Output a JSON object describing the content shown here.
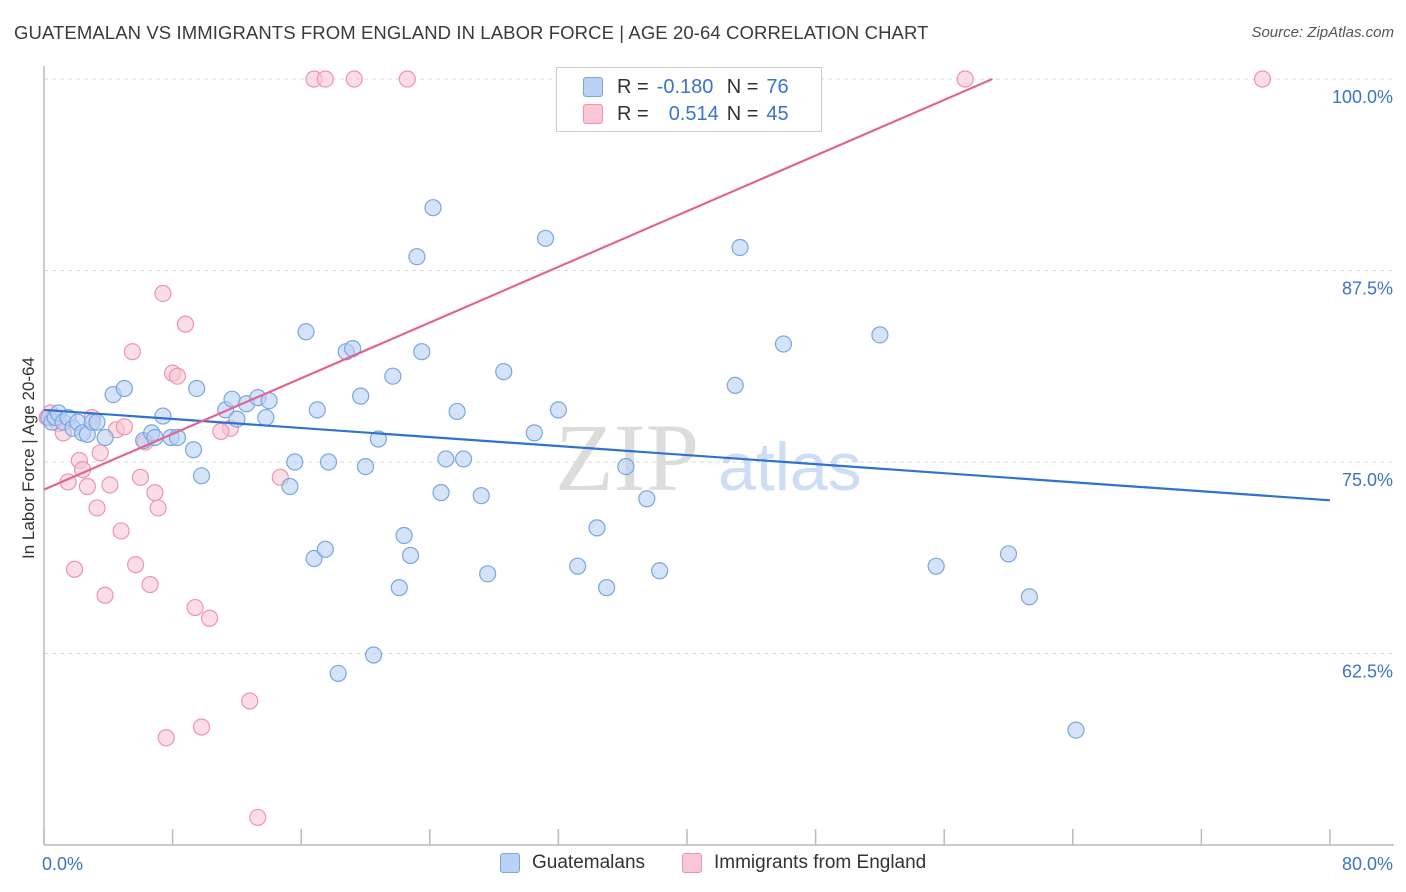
{
  "title": "GUATEMALAN VS IMMIGRANTS FROM ENGLAND IN LABOR FORCE | AGE 20-64 CORRELATION CHART",
  "source": "Source: ZipAtlas.com",
  "watermark": {
    "zip": "ZIP",
    "atlas": "atlas"
  },
  "colors": {
    "blue_fill": "#b9d1f3",
    "blue_stroke": "#7aa6e0",
    "blue_line": "#2f72cf",
    "pink_fill": "#f9c6d6",
    "pink_stroke": "#ef93b0",
    "pink_line": "#e0668f",
    "axis_text": "#3b74c9",
    "grid": "#d8d8d8"
  },
  "legend": {
    "rows": [
      {
        "r_label": "R =",
        "r_value": "-0.180",
        "n_label": "N =",
        "n_value": "76",
        "color": "blue"
      },
      {
        "r_label": "R =",
        "r_value": "0.514",
        "n_label": "N =",
        "n_value": "45",
        "color": "pink"
      }
    ]
  },
  "chart_data": {
    "type": "scatter",
    "title": "GUATEMALAN VS IMMIGRANTS FROM ENGLAND IN LABOR FORCE | AGE 20-64 CORRELATION CHART",
    "xlabel": "",
    "ylabel": "In Labor Force | Age 20-64",
    "xlim": [
      0,
      80
    ],
    "ylim": [
      50,
      100
    ],
    "x_tick_labels": [
      "0.0%",
      "80.0%"
    ],
    "y_ticks": [
      62.5,
      75.0,
      87.5,
      100.0
    ],
    "y_tick_labels": [
      "62.5%",
      "75.0%",
      "87.5%",
      "100.0%"
    ],
    "grid": true,
    "legend_position": "bottom",
    "series": [
      {
        "name": "Guatemalans",
        "color": "blue",
        "r": -0.18,
        "n": 76,
        "trend": {
          "x": [
            0,
            80
          ],
          "y": [
            78.4,
            72.5
          ]
        },
        "points": [
          [
            0.3,
            77.9
          ],
          [
            0.5,
            77.6
          ],
          [
            0.7,
            77.9
          ],
          [
            0.9,
            78.2
          ],
          [
            1.2,
            77.6
          ],
          [
            1.5,
            77.9
          ],
          [
            1.8,
            77.2
          ],
          [
            2.1,
            77.6
          ],
          [
            2.4,
            76.9
          ],
          [
            2.7,
            76.8
          ],
          [
            3.0,
            77.6
          ],
          [
            3.3,
            77.6
          ],
          [
            3.8,
            76.6
          ],
          [
            4.3,
            79.4
          ],
          [
            5.0,
            79.8
          ],
          [
            6.2,
            76.4
          ],
          [
            6.7,
            76.9
          ],
          [
            6.9,
            76.6
          ],
          [
            7.4,
            78.0
          ],
          [
            7.9,
            76.6
          ],
          [
            8.3,
            76.6
          ],
          [
            9.3,
            75.8
          ],
          [
            9.8,
            74.1
          ],
          [
            11.3,
            78.4
          ],
          [
            11.7,
            79.1
          ],
          [
            12.0,
            77.8
          ],
          [
            12.6,
            78.8
          ],
          [
            13.3,
            79.2
          ],
          [
            14.0,
            79.0
          ],
          [
            13.8,
            77.9
          ],
          [
            15.6,
            75.0
          ],
          [
            15.3,
            73.4
          ],
          [
            16.3,
            83.5
          ],
          [
            16.8,
            68.7
          ],
          [
            17.0,
            78.4
          ],
          [
            17.5,
            69.3
          ],
          [
            17.7,
            75.0
          ],
          [
            18.3,
            61.2
          ],
          [
            18.8,
            82.2
          ],
          [
            19.2,
            82.4
          ],
          [
            19.7,
            79.3
          ],
          [
            20.0,
            74.7
          ],
          [
            20.5,
            62.4
          ],
          [
            21.7,
            80.6
          ],
          [
            22.4,
            70.2
          ],
          [
            22.1,
            66.8
          ],
          [
            22.8,
            68.9
          ],
          [
            23.2,
            88.4
          ],
          [
            23.5,
            82.2
          ],
          [
            24.2,
            91.6
          ],
          [
            24.7,
            73.0
          ],
          [
            25.0,
            75.2
          ],
          [
            25.7,
            78.3
          ],
          [
            26.1,
            75.2
          ],
          [
            27.2,
            72.8
          ],
          [
            27.6,
            67.7
          ],
          [
            28.6,
            80.9
          ],
          [
            30.5,
            76.9
          ],
          [
            31.2,
            89.6
          ],
          [
            32.0,
            78.4
          ],
          [
            33.2,
            68.2
          ],
          [
            34.4,
            70.7
          ],
          [
            35.0,
            66.8
          ],
          [
            36.2,
            74.7
          ],
          [
            37.5,
            72.6
          ],
          [
            38.3,
            67.9
          ],
          [
            43.3,
            89.0
          ],
          [
            43.0,
            80.0
          ],
          [
            46.0,
            82.7
          ],
          [
            52.0,
            83.3
          ],
          [
            55.5,
            68.2
          ],
          [
            60.0,
            69.0
          ],
          [
            61.3,
            66.2
          ],
          [
            64.2,
            57.5
          ],
          [
            20.8,
            76.5
          ],
          [
            9.5,
            79.8
          ]
        ]
      },
      {
        "name": "Immigrants from England",
        "color": "pink",
        "r": 0.514,
        "n": 45,
        "trend": {
          "x": [
            0,
            59
          ],
          "y": [
            73.2,
            100
          ]
        },
        "points": [
          [
            0.2,
            77.9
          ],
          [
            0.4,
            78.2
          ],
          [
            0.6,
            77.9
          ],
          [
            0.9,
            77.5
          ],
          [
            1.2,
            76.9
          ],
          [
            1.5,
            73.7
          ],
          [
            1.9,
            68.0
          ],
          [
            2.2,
            75.1
          ],
          [
            2.4,
            74.5
          ],
          [
            2.7,
            73.4
          ],
          [
            3.0,
            77.9
          ],
          [
            3.3,
            72.0
          ],
          [
            3.5,
            75.6
          ],
          [
            3.8,
            66.3
          ],
          [
            4.1,
            73.5
          ],
          [
            4.5,
            77.1
          ],
          [
            4.8,
            70.5
          ],
          [
            5.0,
            77.3
          ],
          [
            5.5,
            82.2
          ],
          [
            5.7,
            68.3
          ],
          [
            6.0,
            74.0
          ],
          [
            6.3,
            76.3
          ],
          [
            6.6,
            67.0
          ],
          [
            6.9,
            73.0
          ],
          [
            7.1,
            72.0
          ],
          [
            7.4,
            86.0
          ],
          [
            7.6,
            57.0
          ],
          [
            8.0,
            80.8
          ],
          [
            8.3,
            80.6
          ],
          [
            8.8,
            84.0
          ],
          [
            9.4,
            65.5
          ],
          [
            9.8,
            57.7
          ],
          [
            10.3,
            64.8
          ],
          [
            11.6,
            77.2
          ],
          [
            12.8,
            59.4
          ],
          [
            13.3,
            51.8
          ],
          [
            14.7,
            74.0
          ],
          [
            16.8,
            100
          ],
          [
            17.5,
            100
          ],
          [
            19.3,
            100
          ],
          [
            22.6,
            100
          ],
          [
            33.0,
            100
          ],
          [
            57.3,
            100
          ],
          [
            75.8,
            100
          ],
          [
            11.0,
            77.0
          ]
        ]
      }
    ]
  },
  "bottom_legend": {
    "items": [
      {
        "label": "Guatemalans",
        "color": "blue"
      },
      {
        "label": "Immigrants from England",
        "color": "pink"
      }
    ]
  }
}
